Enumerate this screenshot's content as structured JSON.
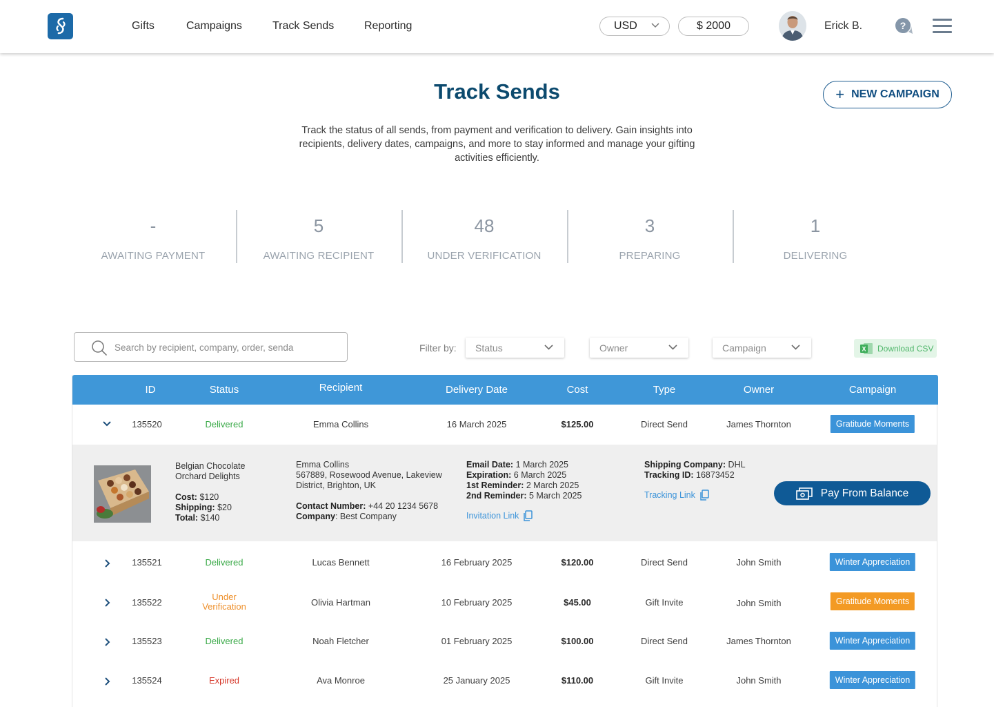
{
  "nav": {
    "items": [
      "Gifts",
      "Campaigns",
      "Track Sends",
      "Reporting"
    ],
    "currency": "USD",
    "balance": "$ 2000",
    "user_name": "Erick B."
  },
  "page": {
    "title": "Track Sends",
    "new_campaign_label": "NEW CAMPAIGN",
    "description": "Track the status of all sends, from payment and verification to delivery. Gain insights into recipients, delivery dates, campaigns, and more to stay informed and manage your gifting activities efficiently."
  },
  "stats": [
    {
      "value": "-",
      "label": "AWAITING PAYMENT"
    },
    {
      "value": "5",
      "label": "AWAITING RECIPIENT"
    },
    {
      "value": "48",
      "label": "UNDER VERIFICATION"
    },
    {
      "value": "3",
      "label": "PREPARING"
    },
    {
      "value": "1",
      "label": "DELIVERING"
    }
  ],
  "filters": {
    "search_placeholder": "Search by recipient, company, order, senda",
    "filter_label": "Filter by:",
    "status": "Status",
    "owner": "Owner",
    "campaign": "Campaign",
    "download_csv": "Download CSV"
  },
  "table": {
    "headers": [
      "ID",
      "Status",
      "Recipient",
      "Delivery Date",
      "Cost",
      "Type",
      "Owner",
      "Campaign"
    ],
    "rows": [
      {
        "id": "135520",
        "status": "Delivered",
        "recipient": "Emma Collins",
        "date": "16 March 2025",
        "cost": "$125.00",
        "type": "Direct Send",
        "owner": "James Thornton",
        "campaign": "Gratitude Moments"
      },
      {
        "id": "135521",
        "status": "Delivered",
        "recipient": "Lucas Bennett",
        "date": "16 February 2025",
        "cost": "$120.00",
        "type": "Direct Send",
        "owner": "John Smith",
        "campaign": "Winter Appreciation"
      },
      {
        "id": "135522",
        "status_line1": "Under",
        "status_line2": "Verification",
        "recipient": "Olivia Hartman",
        "date": "10 February 2025",
        "cost": "$45.00",
        "type": "Gift Invite",
        "owner": "John Smith",
        "campaign": "Gratitude Moments"
      },
      {
        "id": "135523",
        "status": "Delivered",
        "recipient": "Noah Fletcher",
        "date": "01 February 2025",
        "cost": "$100.00",
        "type": "Direct Send",
        "owner": "James Thornton",
        "campaign": "Winter Appreciation"
      },
      {
        "id": "135524",
        "status": "Expired",
        "recipient": "Ava Monroe",
        "date": "25 January 2025",
        "cost": "$110.00",
        "type": "Gift Invite",
        "owner": "John Smith",
        "campaign": "Winter Appreciation"
      }
    ]
  },
  "detail": {
    "product_line1": "Belgian Chocolate",
    "product_line2": "Orchard Delights",
    "cost_label": "Cost:",
    "cost": "$120",
    "shipping_label": "Shipping:",
    "shipping": "$20",
    "total_label": "Total:",
    "total": "$140",
    "recipient_name": "Emma Collins",
    "address_line1": "567889, Rosewood Avenue, Lakeview",
    "address_line2": "District, Brighton, UK",
    "contact_label": "Contact Number:",
    "contact": "+44 20 1234 5678",
    "company_label": "Company",
    "company": ": Best Company",
    "email_date_label": "Email Date:",
    "email_date": "1 March 2025",
    "expiration_label": "Expiration:",
    "expiration": "6 March 2025",
    "reminder1_label": "1st Reminder:",
    "reminder1": "2 March 2025",
    "reminder2_label": "2nd Reminder:",
    "reminder2": "5 March 2025",
    "invitation_link": "Invitation Link",
    "shipping_company_label": "Shipping Company:",
    "shipping_company": "DHL",
    "tracking_id_label": "Tracking ID:",
    "tracking_id": "16873452",
    "tracking_link": "Tracking Link",
    "pay_button": "Pay From Balance"
  }
}
